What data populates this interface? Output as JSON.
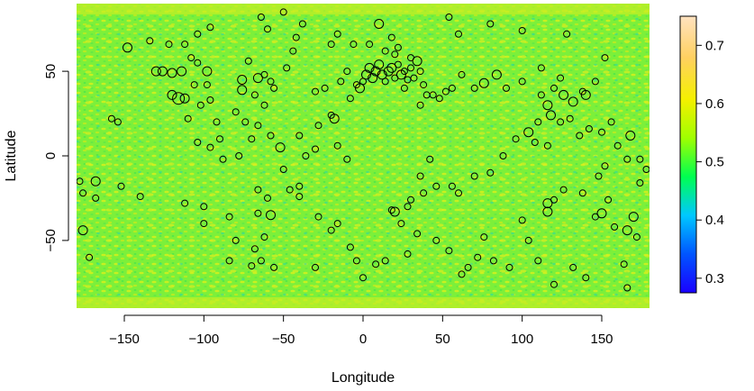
{
  "chart_data": {
    "type": "scatter",
    "title": "",
    "xlabel": "Longitude",
    "ylabel": "Latitude",
    "xlim": [
      -180,
      180
    ],
    "ylim": [
      -90,
      90
    ],
    "x_ticks": [
      -150,
      -100,
      -50,
      0,
      50,
      100,
      150
    ],
    "y_ticks": [
      -50,
      0,
      50
    ],
    "background": {
      "type": "heatmap",
      "description": "field values mapped over longitude/latitude, mostly between 0.45 and 0.6",
      "typical_range": [
        0.45,
        0.6
      ]
    },
    "colorbar": {
      "range": [
        0.275,
        0.75
      ],
      "ticks": [
        0.3,
        0.4,
        0.5,
        0.6,
        0.7
      ],
      "colors": [
        "#1a00ff",
        "#0055ff",
        "#00c8ff",
        "#00ff50",
        "#a0ff00",
        "#f5f000",
        "#ffd060",
        "#ffe2c0"
      ]
    },
    "points": {
      "style": "open-circle",
      "color": "#000000",
      "data": [
        [
          -148,
          64,
          2
        ],
        [
          -134,
          68,
          1
        ],
        [
          -122,
          66,
          1
        ],
        [
          -112,
          66,
          1
        ],
        [
          -104,
          72,
          1
        ],
        [
          -96,
          76,
          1
        ],
        [
          -130,
          50,
          2
        ],
        [
          -126,
          50,
          2
        ],
        [
          -120,
          49,
          2
        ],
        [
          -114,
          50,
          2
        ],
        [
          -108,
          58,
          1
        ],
        [
          -104,
          55,
          1
        ],
        [
          -98,
          50,
          2
        ],
        [
          -116,
          34,
          3
        ],
        [
          -120,
          36,
          2
        ],
        [
          -112,
          34,
          2
        ],
        [
          -106,
          42,
          1
        ],
        [
          -98,
          42,
          1
        ],
        [
          -96,
          33,
          1
        ],
        [
          -102,
          30,
          1
        ],
        [
          -110,
          22,
          1
        ],
        [
          -92,
          20,
          1
        ],
        [
          -90,
          10,
          1
        ],
        [
          -76,
          39,
          2
        ],
        [
          -76,
          45,
          2
        ],
        [
          -72,
          56,
          1
        ],
        [
          -66,
          46,
          2
        ],
        [
          -62,
          48,
          1
        ],
        [
          -58,
          44,
          1
        ],
        [
          -68,
          36,
          1
        ],
        [
          -62,
          30,
          1
        ],
        [
          -56,
          40,
          1
        ],
        [
          -48,
          52,
          1
        ],
        [
          -44,
          62,
          1
        ],
        [
          -42,
          70,
          1
        ],
        [
          -38,
          78,
          1
        ],
        [
          -60,
          75,
          1
        ],
        [
          -64,
          82,
          1
        ],
        [
          -50,
          85,
          1
        ],
        [
          -80,
          26,
          1
        ],
        [
          -74,
          20,
          1
        ],
        [
          -66,
          18,
          1
        ],
        [
          -58,
          12,
          1
        ],
        [
          -70,
          10,
          1
        ],
        [
          -78,
          0,
          1
        ],
        [
          -88,
          -2,
          1
        ],
        [
          -96,
          5,
          1
        ],
        [
          -104,
          8,
          1
        ],
        [
          -158,
          22,
          1
        ],
        [
          -154,
          20,
          1
        ],
        [
          -168,
          -15,
          2
        ],
        [
          -178,
          -15,
          1
        ],
        [
          -176,
          -22,
          1
        ],
        [
          -168,
          -25,
          1
        ],
        [
          -152,
          -18,
          1
        ],
        [
          -140,
          -24,
          1
        ],
        [
          -112,
          -28,
          1
        ],
        [
          -66,
          -20,
          1
        ],
        [
          -60,
          -25,
          1
        ],
        [
          -66,
          -34,
          1
        ],
        [
          -58,
          -35,
          2
        ],
        [
          -62,
          -48,
          1
        ],
        [
          -68,
          -55,
          1
        ],
        [
          -70,
          -65,
          1
        ],
        [
          -64,
          -62,
          1
        ],
        [
          -56,
          -66,
          1
        ],
        [
          -50,
          -8,
          1
        ],
        [
          -46,
          -20,
          1
        ],
        [
          -40,
          -24,
          1
        ],
        [
          -52,
          5,
          2
        ],
        [
          -40,
          12,
          1
        ],
        [
          -28,
          18,
          1
        ],
        [
          -20,
          24,
          1
        ],
        [
          -18,
          22,
          2
        ],
        [
          -24,
          40,
          1
        ],
        [
          -30,
          38,
          1
        ],
        [
          -14,
          44,
          1
        ],
        [
          -10,
          50,
          1
        ],
        [
          -4,
          42,
          1
        ],
        [
          -8,
          34,
          1
        ],
        [
          -16,
          6,
          1
        ],
        [
          -10,
          -2,
          1
        ],
        [
          -2,
          40,
          2
        ],
        [
          0,
          44,
          1
        ],
        [
          2,
          48,
          2
        ],
        [
          4,
          52,
          2
        ],
        [
          6,
          46,
          2
        ],
        [
          8,
          50,
          2
        ],
        [
          10,
          54,
          2
        ],
        [
          12,
          48,
          2
        ],
        [
          14,
          44,
          1
        ],
        [
          16,
          50,
          2
        ],
        [
          18,
          52,
          2
        ],
        [
          20,
          46,
          1
        ],
        [
          22,
          54,
          1
        ],
        [
          24,
          48,
          2
        ],
        [
          26,
          50,
          1
        ],
        [
          28,
          45,
          1
        ],
        [
          30,
          52,
          1
        ],
        [
          32,
          46,
          1
        ],
        [
          34,
          56,
          2
        ],
        [
          36,
          50,
          1
        ],
        [
          38,
          42,
          1
        ],
        [
          40,
          36,
          1
        ],
        [
          26,
          40,
          1
        ],
        [
          30,
          58,
          1
        ],
        [
          20,
          60,
          1
        ],
        [
          14,
          62,
          1
        ],
        [
          10,
          78,
          2
        ],
        [
          18,
          70,
          1
        ],
        [
          22,
          64,
          1
        ],
        [
          4,
          66,
          1
        ],
        [
          -6,
          66,
          1
        ],
        [
          36,
          30,
          1
        ],
        [
          44,
          36,
          1
        ],
        [
          48,
          34,
          1
        ],
        [
          52,
          38,
          1
        ],
        [
          56,
          40,
          1
        ],
        [
          62,
          48,
          1
        ],
        [
          70,
          40,
          1
        ],
        [
          76,
          43,
          2
        ],
        [
          84,
          48,
          2
        ],
        [
          90,
          40,
          1
        ],
        [
          100,
          44,
          1
        ],
        [
          112,
          36,
          1
        ],
        [
          116,
          30,
          2
        ],
        [
          120,
          40,
          1
        ],
        [
          124,
          46,
          1
        ],
        [
          126,
          36,
          2
        ],
        [
          132,
          32,
          2
        ],
        [
          138,
          38,
          1
        ],
        [
          140,
          36,
          2
        ],
        [
          146,
          44,
          1
        ],
        [
          152,
          58,
          1
        ],
        [
          112,
          52,
          1
        ],
        [
          118,
          24,
          2
        ],
        [
          110,
          20,
          1
        ],
        [
          104,
          14,
          2
        ],
        [
          108,
          8,
          1
        ],
        [
          116,
          6,
          1
        ],
        [
          124,
          20,
          1
        ],
        [
          130,
          22,
          1
        ],
        [
          136,
          12,
          1
        ],
        [
          142,
          16,
          1
        ],
        [
          150,
          14,
          1
        ],
        [
          156,
          20,
          1
        ],
        [
          168,
          12,
          2
        ],
        [
          174,
          -2,
          1
        ],
        [
          178,
          -8,
          1
        ],
        [
          166,
          -2,
          1
        ],
        [
          160,
          6,
          1
        ],
        [
          152,
          -6,
          1
        ],
        [
          148,
          -12,
          1
        ],
        [
          138,
          -22,
          1
        ],
        [
          126,
          -20,
          1
        ],
        [
          116,
          -28,
          2
        ],
        [
          116,
          -33,
          2
        ],
        [
          120,
          -26,
          1
        ],
        [
          146,
          -36,
          1
        ],
        [
          150,
          -34,
          2
        ],
        [
          154,
          -26,
          1
        ],
        [
          158,
          -42,
          1
        ],
        [
          166,
          -44,
          2
        ],
        [
          170,
          -36,
          2
        ],
        [
          172,
          -48,
          1
        ],
        [
          164,
          -64,
          1
        ],
        [
          166,
          -78,
          1
        ],
        [
          174,
          -16,
          1
        ],
        [
          46,
          -18,
          1
        ],
        [
          38,
          -22,
          1
        ],
        [
          30,
          -26,
          1
        ],
        [
          28,
          -30,
          1
        ],
        [
          20,
          -33,
          2
        ],
        [
          18,
          -32,
          1
        ],
        [
          24,
          -40,
          1
        ],
        [
          36,
          -12,
          1
        ],
        [
          42,
          -2,
          1
        ],
        [
          56,
          -18,
          1
        ],
        [
          60,
          -22,
          1
        ],
        [
          70,
          -12,
          1
        ],
        [
          80,
          -10,
          1
        ],
        [
          88,
          0,
          1
        ],
        [
          96,
          10,
          1
        ],
        [
          76,
          -48,
          1
        ],
        [
          72,
          -60,
          1
        ],
        [
          82,
          -62,
          1
        ],
        [
          66,
          -66,
          1
        ],
        [
          62,
          -70,
          1
        ],
        [
          54,
          -56,
          1
        ],
        [
          46,
          -50,
          1
        ],
        [
          0,
          -72,
          1
        ],
        [
          -4,
          -62,
          1
        ],
        [
          8,
          -64,
          1
        ],
        [
          14,
          -62,
          1
        ],
        [
          34,
          -46,
          1
        ],
        [
          28,
          -58,
          1
        ],
        [
          -20,
          -44,
          1
        ],
        [
          -8,
          -54,
          1
        ],
        [
          -30,
          -66,
          1
        ],
        [
          -16,
          -40,
          1
        ],
        [
          -28,
          -36,
          1
        ],
        [
          -40,
          -18,
          1
        ],
        [
          -36,
          0,
          1
        ],
        [
          -30,
          4,
          1
        ],
        [
          -100,
          -30,
          1
        ],
        [
          -100,
          -40,
          1
        ],
        [
          -84,
          -36,
          1
        ],
        [
          -80,
          -50,
          1
        ],
        [
          -84,
          -62,
          1
        ],
        [
          -176,
          -44,
          2
        ],
        [
          -172,
          -60,
          1
        ],
        [
          100,
          -38,
          1
        ],
        [
          104,
          -50,
          1
        ],
        [
          110,
          -62,
          1
        ],
        [
          92,
          -66,
          1
        ],
        [
          132,
          -66,
          1
        ],
        [
          120,
          -76,
          1
        ],
        [
          140,
          -72,
          1
        ],
        [
          60,
          72,
          1
        ],
        [
          54,
          82,
          1
        ],
        [
          80,
          78,
          1
        ],
        [
          100,
          74,
          1
        ],
        [
          128,
          72,
          1
        ],
        [
          -20,
          66,
          1
        ],
        [
          -16,
          72,
          1
        ]
      ]
    }
  }
}
